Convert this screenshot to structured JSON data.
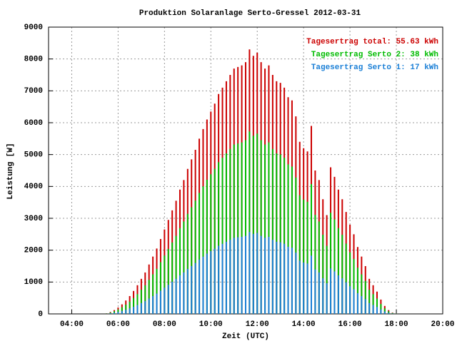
{
  "chart_data": {
    "type": "impulse",
    "title": "Produktion Solaranlage Serto-Gressel 2012-03-31",
    "x_label": "Zeit (UTC)",
    "y_label": "Leistung [W]",
    "xlim": [
      "03:00",
      "20:00"
    ],
    "xticks": [
      "04:00",
      "06:00",
      "08:00",
      "10:00",
      "12:00",
      "14:00",
      "16:00",
      "18:00",
      "20:00"
    ],
    "ylim": [
      0,
      9000
    ],
    "yticks": [
      0,
      1000,
      2000,
      3000,
      4000,
      5000,
      6000,
      7000,
      8000,
      9000
    ],
    "grid": true,
    "legend": "top-right",
    "x": [
      "05:30",
      "05:40",
      "05:50",
      "06:00",
      "06:10",
      "06:20",
      "06:30",
      "06:40",
      "06:50",
      "07:00",
      "07:10",
      "07:20",
      "07:30",
      "07:40",
      "07:50",
      "08:00",
      "08:10",
      "08:20",
      "08:30",
      "08:40",
      "08:50",
      "09:00",
      "09:10",
      "09:20",
      "09:30",
      "09:40",
      "09:50",
      "10:00",
      "10:10",
      "10:20",
      "10:30",
      "10:40",
      "10:50",
      "11:00",
      "11:10",
      "11:20",
      "11:30",
      "11:40",
      "11:50",
      "12:00",
      "12:10",
      "12:20",
      "12:30",
      "12:40",
      "12:50",
      "13:00",
      "13:10",
      "13:20",
      "13:30",
      "13:40",
      "13:50",
      "14:00",
      "14:10",
      "14:20",
      "14:30",
      "14:40",
      "14:50",
      "15:00",
      "15:10",
      "15:20",
      "15:30",
      "15:40",
      "15:50",
      "16:00",
      "16:10",
      "16:20",
      "16:30",
      "16:40",
      "16:50",
      "17:00",
      "17:10",
      "17:20",
      "17:30",
      "17:40",
      "17:50",
      "18:00"
    ],
    "series": [
      {
        "name": "Tagesertrag total: 55.63 kWh",
        "color": "#cc0000",
        "values": [
          20,
          60,
          120,
          200,
          300,
          420,
          560,
          720,
          900,
          1100,
          1300,
          1550,
          1800,
          2050,
          2350,
          2650,
          2950,
          3250,
          3550,
          3900,
          4200,
          4550,
          4850,
          5150,
          5500,
          5800,
          6100,
          6350,
          6600,
          6900,
          7100,
          7300,
          7500,
          7700,
          7750,
          7800,
          7900,
          8300,
          8100,
          8200,
          7900,
          7700,
          7800,
          7500,
          7300,
          7250,
          7100,
          6800,
          6700,
          6200,
          5400,
          5200,
          5100,
          5900,
          4500,
          4200,
          3600,
          3100,
          4600,
          4300,
          3900,
          3600,
          3200,
          2800,
          2500,
          2100,
          1800,
          1500,
          1100,
          900,
          700,
          450,
          250,
          120,
          40,
          10
        ]
      },
      {
        "name": "Tagesertrag Serto 2: 38 kWh",
        "color": "#00bb00",
        "values": [
          14,
          41,
          83,
          138,
          207,
          290,
          386,
          497,
          621,
          759,
          897,
          1070,
          1242,
          1415,
          1622,
          1829,
          2036,
          2243,
          2450,
          2691,
          2898,
          3140,
          3347,
          3554,
          3795,
          4002,
          4209,
          4382,
          4554,
          4761,
          4899,
          5037,
          5175,
          5313,
          5348,
          5382,
          5451,
          5727,
          5589,
          5658,
          5451,
          5313,
          5382,
          5175,
          5037,
          5003,
          4899,
          4692,
          4623,
          4278,
          3726,
          3588,
          3519,
          4071,
          3105,
          2898,
          2484,
          2139,
          3174,
          2967,
          2691,
          2484,
          2208,
          1932,
          1725,
          1449,
          1242,
          1035,
          759,
          621,
          483,
          311,
          173,
          83,
          28,
          7
        ]
      },
      {
        "name": "Tagesertrag Serto 1: 17 kWh",
        "color": "#1a7fd6",
        "values": [
          6,
          19,
          37,
          62,
          93,
          130,
          174,
          223,
          279,
          341,
          403,
          481,
          558,
          636,
          729,
          822,
          915,
          1008,
          1101,
          1209,
          1302,
          1411,
          1504,
          1597,
          1705,
          1798,
          1891,
          1969,
          2046,
          2139,
          2201,
          2263,
          2325,
          2387,
          2403,
          2418,
          2449,
          2573,
          2511,
          2542,
          2449,
          2387,
          2418,
          2325,
          2263,
          2248,
          2201,
          2108,
          2077,
          1922,
          1674,
          1612,
          1581,
          1829,
          1395,
          1302,
          1116,
          961,
          1426,
          1333,
          1209,
          1116,
          992,
          868,
          775,
          651,
          558,
          465,
          341,
          279,
          217,
          140,
          78,
          37,
          12,
          3
        ]
      }
    ]
  }
}
